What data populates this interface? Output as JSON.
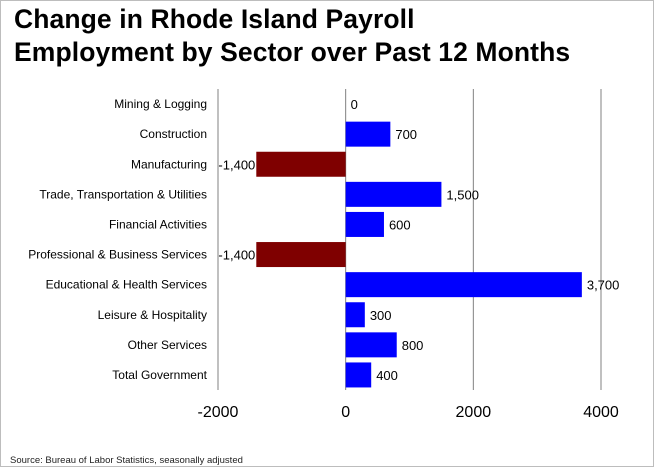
{
  "title_lines": [
    "Change in Rhode Island Payroll",
    "Employment by Sector over Past 12 Months"
  ],
  "source": "Source: Bureau of Labor Statistics, seasonally adjusted",
  "colors": {
    "positive": "#0000ff",
    "negative": "#7f0000",
    "grid": "#808080"
  },
  "chart_data": {
    "type": "bar",
    "orientation": "horizontal",
    "categories": [
      "Mining & Logging",
      "Construction",
      "Manufacturing",
      "Trade, Transportation & Utilities",
      "Financial Activities",
      "Professional & Business Services",
      "Educational & Health Services",
      "Leisure & Hospitality",
      "Other Services",
      "Total Government"
    ],
    "values": [
      0,
      700,
      -1400,
      1500,
      600,
      -1400,
      3700,
      300,
      800,
      400
    ],
    "data_labels": [
      "0",
      "700",
      "-1,400",
      "1,500",
      "600",
      "-1,400",
      "3,700",
      "300",
      "800",
      "400"
    ],
    "xlim": [
      -2000,
      4000
    ],
    "xticks": [
      -2000,
      0,
      2000,
      4000
    ],
    "xtick_labels": [
      "-2000",
      "0",
      "2000",
      "4000"
    ],
    "grid": true
  }
}
